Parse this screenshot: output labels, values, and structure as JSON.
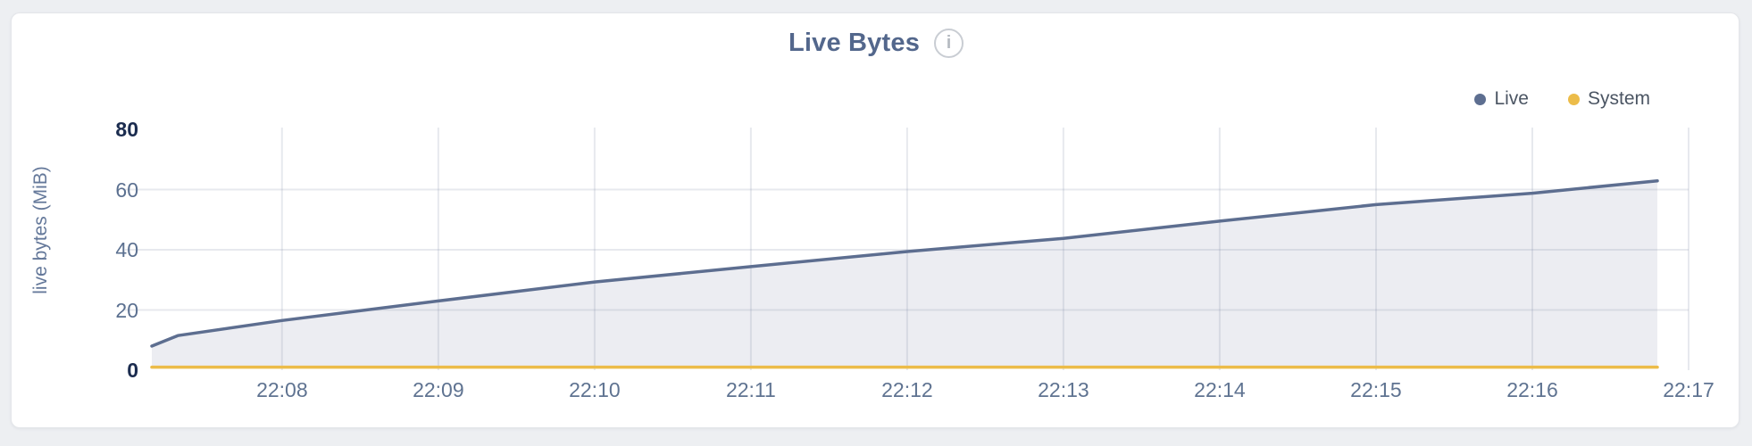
{
  "page": {
    "background": "#edeff2"
  },
  "header": {
    "title": "Live Bytes",
    "info_icon_glyph": "i"
  },
  "legend": {
    "items": [
      {
        "label": "Live",
        "color": "#5d6e90"
      },
      {
        "label": "System",
        "color": "#ecbc49"
      }
    ]
  },
  "chart_data": {
    "type": "area",
    "title": "Live Bytes",
    "xlabel": "",
    "ylabel": "live bytes (MiB)",
    "ylim": [
      0,
      80
    ],
    "yticks": [
      0,
      20,
      40,
      60,
      80
    ],
    "bold_yticks": [
      0,
      80
    ],
    "grid_yticks": [
      20,
      40,
      60
    ],
    "xticks": [
      "22:08",
      "22:09",
      "22:10",
      "22:11",
      "22:12",
      "22:13",
      "22:14",
      "22:15",
      "22:16",
      "22:17"
    ],
    "x_start": "22:07:10",
    "x_end": "22:17:00",
    "grid": true,
    "legend_position": "top-right",
    "series": [
      {
        "name": "Live",
        "color": "#5d6e90",
        "fill": "#ecedf2",
        "points": [
          [
            "22:07:10",
            8.0
          ],
          [
            "22:07:20",
            11.5
          ],
          [
            "22:08:00",
            16.5
          ],
          [
            "22:09:00",
            23.0
          ],
          [
            "22:10:00",
            29.3
          ],
          [
            "22:11:00",
            34.4
          ],
          [
            "22:12:00",
            39.4
          ],
          [
            "22:13:00",
            43.8
          ],
          [
            "22:14:00",
            49.5
          ],
          [
            "22:15:00",
            55.0
          ],
          [
            "22:16:00",
            58.8
          ],
          [
            "22:16:48",
            62.9
          ]
        ]
      },
      {
        "name": "System",
        "color": "#ecbc49",
        "fill": null,
        "points": [
          [
            "22:07:10",
            1.0
          ],
          [
            "22:16:48",
            1.0
          ]
        ]
      }
    ]
  }
}
